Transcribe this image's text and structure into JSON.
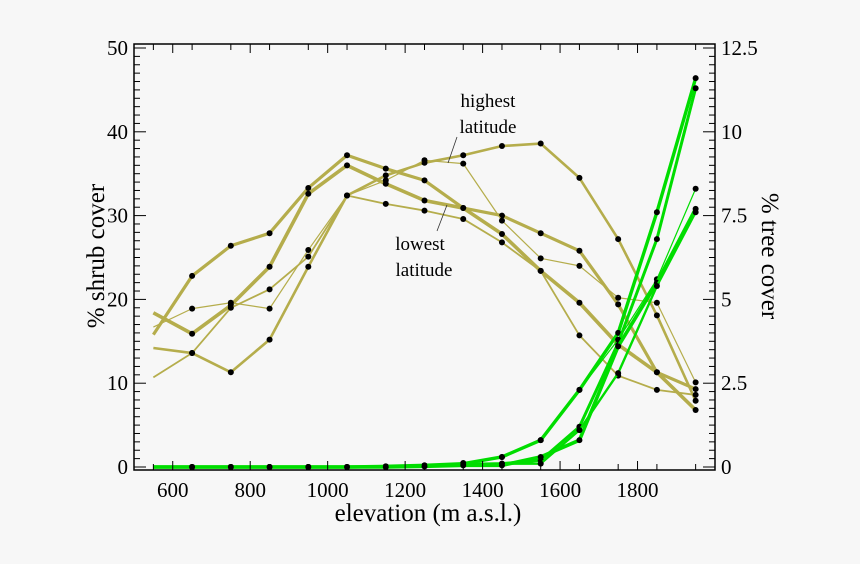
{
  "chart_data": {
    "type": "line",
    "xlabel": "elevation (m a.s.l.)",
    "ylabel_left": "% shrub cover",
    "ylabel_right": "% tree cover",
    "xlim": [
      500,
      2000
    ],
    "ylim_left": [
      0,
      50
    ],
    "ylim_right": [
      0,
      12.5
    ],
    "x_ticks": [
      600,
      800,
      1000,
      1200,
      1400,
      1600,
      1800
    ],
    "y_left_ticks": [
      0,
      10,
      20,
      30,
      40,
      50
    ],
    "y_right_ticks": [
      "0",
      "2.5",
      "5",
      "7.5",
      "10",
      "12.5"
    ],
    "grid": false,
    "colors": {
      "shrub": "#b5ad4c",
      "tree": "#00dd00",
      "marker": "#000000"
    },
    "annotations": [
      {
        "text_lines": [
          "highest",
          "latitude"
        ]
      },
      {
        "text_lines": [
          "lowest",
          "latitude"
        ]
      }
    ],
    "x": [
      550,
      650,
      750,
      850,
      950,
      1050,
      1150,
      1250,
      1350,
      1450,
      1550,
      1650,
      1750,
      1850,
      1950
    ],
    "shrub_series": [
      {
        "axis": "left",
        "values": [
          15.8,
          22.8,
          26.4,
          27.9,
          33.3,
          37.2,
          35.6,
          34.2,
          30.9,
          30.0,
          27.9,
          25.8,
          19.4,
          11.3,
          9.3
        ]
      },
      {
        "axis": "left",
        "values": [
          18.4,
          15.9,
          19.3,
          23.9,
          32.6,
          36.0,
          33.8,
          31.8,
          30.9,
          27.8,
          23.4,
          19.6,
          14.6,
          11.3,
          6.8
        ]
      },
      {
        "axis": "left",
        "values": [
          14.2,
          13.6,
          11.3,
          15.2,
          23.9,
          32.4,
          34.8,
          36.3,
          37.2,
          38.3,
          38.6,
          34.5,
          27.2,
          18.1,
          7.9
        ]
      },
      {
        "axis": "left",
        "values": [
          16.7,
          18.9,
          19.6,
          18.9,
          25.9,
          32.4,
          34.2,
          36.6,
          36.2,
          29.4,
          24.9,
          24.0,
          20.2,
          19.6,
          10.1
        ]
      },
      {
        "axis": "left",
        "values": [
          10.7,
          13.6,
          19.0,
          21.2,
          25.1,
          32.4,
          31.4,
          30.6,
          29.6,
          26.8,
          23.4,
          15.7,
          10.9,
          9.2,
          8.6
        ]
      }
    ],
    "tree_series": [
      {
        "axis": "right",
        "values": [
          0,
          0,
          0,
          0,
          0,
          0,
          0.02,
          0.05,
          0.1,
          0.3,
          0.8,
          2.3,
          4.0,
          7.6,
          11.6
        ]
      },
      {
        "axis": "right",
        "values": [
          0,
          0,
          0,
          0,
          0,
          0,
          0,
          0.03,
          0.08,
          0.1,
          0.2,
          1.2,
          3.7,
          6.8,
          11.3
        ]
      },
      {
        "axis": "right",
        "values": [
          0,
          0,
          0,
          0,
          0,
          0,
          0.02,
          0.05,
          0.12,
          0.3,
          0.8,
          2.3,
          3.8,
          5.6,
          8.3
        ]
      },
      {
        "axis": "right",
        "values": [
          0,
          0,
          0,
          0,
          0,
          0,
          0,
          0.02,
          0.05,
          0.05,
          0.3,
          0.8,
          3.6,
          5.5,
          7.7
        ]
      },
      {
        "axis": "right",
        "values": [
          0,
          0,
          0,
          0,
          0,
          0,
          0,
          0.02,
          0.06,
          0.1,
          0.1,
          1.1,
          2.8,
          5.4,
          7.6
        ]
      }
    ]
  }
}
